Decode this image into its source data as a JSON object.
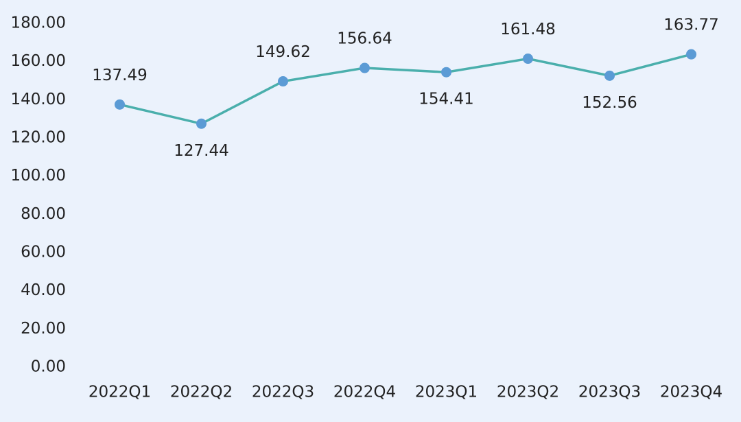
{
  "chart_data": {
    "type": "line",
    "categories": [
      "2022Q1",
      "2022Q2",
      "2022Q3",
      "2022Q4",
      "2023Q1",
      "2023Q2",
      "2023Q3",
      "2023Q4"
    ],
    "series": [
      {
        "color": "#4aafac",
        "marker_color": "#5b9bd5",
        "values": [
          137.49,
          127.44,
          149.62,
          156.64,
          154.41,
          161.48,
          152.56,
          163.77
        ]
      }
    ],
    "ylim": [
      0,
      180
    ],
    "yticks": [
      {
        "value": 0,
        "label": "0.00"
      },
      {
        "value": 20,
        "label": "20.00"
      },
      {
        "value": 40,
        "label": "40.00"
      },
      {
        "value": 60,
        "label": "60.00"
      },
      {
        "value": 80,
        "label": "80.00"
      },
      {
        "value": 100,
        "label": "100.00"
      },
      {
        "value": 120,
        "label": "120.00"
      },
      {
        "value": 140,
        "label": "140.00"
      },
      {
        "value": 160,
        "label": "160.00"
      },
      {
        "value": 180,
        "label": "180.00"
      }
    ],
    "grid": false
  }
}
